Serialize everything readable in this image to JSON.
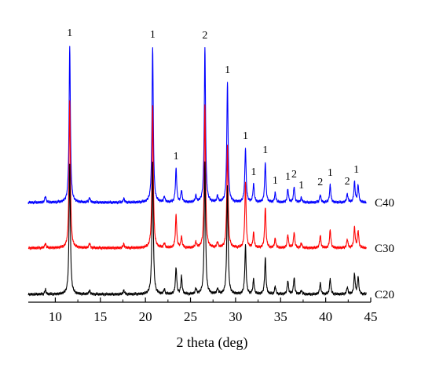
{
  "chart_data": {
    "type": "line",
    "title": "",
    "xlabel": "2 theta (deg)",
    "ylabel": "",
    "xlim": [
      7,
      45
    ],
    "x_ticks": [
      10,
      15,
      20,
      25,
      30,
      35,
      40,
      45
    ],
    "grid": false,
    "legend": "series labels at right end of each trace",
    "series": [
      {
        "name": "C40",
        "color": "#0000ff",
        "peaks": [
          {
            "x": 8.9,
            "h": 8
          },
          {
            "x": 11.6,
            "h": 200
          },
          {
            "x": 13.8,
            "h": 6
          },
          {
            "x": 17.6,
            "h": 5
          },
          {
            "x": 20.8,
            "h": 198
          },
          {
            "x": 22.1,
            "h": 7
          },
          {
            "x": 23.4,
            "h": 43
          },
          {
            "x": 24.0,
            "h": 15
          },
          {
            "x": 25.6,
            "h": 8
          },
          {
            "x": 26.6,
            "h": 197
          },
          {
            "x": 28.0,
            "h": 8
          },
          {
            "x": 29.1,
            "h": 153
          },
          {
            "x": 31.1,
            "h": 69
          },
          {
            "x": 32.0,
            "h": 23
          },
          {
            "x": 33.3,
            "h": 51
          },
          {
            "x": 34.4,
            "h": 12
          },
          {
            "x": 35.8,
            "h": 17
          },
          {
            "x": 36.5,
            "h": 20
          },
          {
            "x": 37.3,
            "h": 6
          },
          {
            "x": 39.4,
            "h": 10
          },
          {
            "x": 40.5,
            "h": 22
          },
          {
            "x": 42.4,
            "h": 11
          },
          {
            "x": 43.2,
            "h": 26
          },
          {
            "x": 43.6,
            "h": 22
          }
        ]
      },
      {
        "name": "C30",
        "color": "#ff0000",
        "peaks": [
          {
            "x": 8.9,
            "h": 6
          },
          {
            "x": 11.6,
            "h": 188
          },
          {
            "x": 13.8,
            "h": 6
          },
          {
            "x": 17.6,
            "h": 5
          },
          {
            "x": 20.8,
            "h": 180
          },
          {
            "x": 22.1,
            "h": 6
          },
          {
            "x": 23.4,
            "h": 42
          },
          {
            "x": 24.0,
            "h": 14
          },
          {
            "x": 25.6,
            "h": 7
          },
          {
            "x": 26.6,
            "h": 182
          },
          {
            "x": 28.0,
            "h": 7
          },
          {
            "x": 29.1,
            "h": 130
          },
          {
            "x": 31.1,
            "h": 84
          },
          {
            "x": 32.0,
            "h": 19
          },
          {
            "x": 33.3,
            "h": 52
          },
          {
            "x": 34.4,
            "h": 12
          },
          {
            "x": 35.8,
            "h": 17
          },
          {
            "x": 36.5,
            "h": 20
          },
          {
            "x": 37.3,
            "h": 6
          },
          {
            "x": 39.4,
            "h": 16
          },
          {
            "x": 40.5,
            "h": 23
          },
          {
            "x": 42.4,
            "h": 11
          },
          {
            "x": 43.2,
            "h": 26
          },
          {
            "x": 43.6,
            "h": 22
          }
        ]
      },
      {
        "name": "C20",
        "color": "#000000",
        "peaks": [
          {
            "x": 8.9,
            "h": 6
          },
          {
            "x": 11.6,
            "h": 165
          },
          {
            "x": 13.8,
            "h": 5
          },
          {
            "x": 17.6,
            "h": 5
          },
          {
            "x": 20.8,
            "h": 168
          },
          {
            "x": 22.1,
            "h": 6
          },
          {
            "x": 23.4,
            "h": 34
          },
          {
            "x": 24.0,
            "h": 22
          },
          {
            "x": 25.6,
            "h": 7
          },
          {
            "x": 26.6,
            "h": 168
          },
          {
            "x": 28.0,
            "h": 7
          },
          {
            "x": 29.1,
            "h": 138
          },
          {
            "x": 31.1,
            "h": 62
          },
          {
            "x": 32.0,
            "h": 19
          },
          {
            "x": 33.3,
            "h": 46
          },
          {
            "x": 34.4,
            "h": 10
          },
          {
            "x": 35.8,
            "h": 17
          },
          {
            "x": 36.5,
            "h": 21
          },
          {
            "x": 37.3,
            "h": 5
          },
          {
            "x": 39.4,
            "h": 14
          },
          {
            "x": 40.5,
            "h": 20
          },
          {
            "x": 42.4,
            "h": 9
          },
          {
            "x": 43.2,
            "h": 26
          },
          {
            "x": 43.6,
            "h": 22
          }
        ]
      }
    ],
    "annotations": [
      {
        "text": "1",
        "x": 11.6
      },
      {
        "text": "1",
        "x": 20.8
      },
      {
        "text": "1",
        "x": 23.4
      },
      {
        "text": "2",
        "x": 26.6
      },
      {
        "text": "1",
        "x": 29.1
      },
      {
        "text": "1",
        "x": 31.1
      },
      {
        "text": "1",
        "x": 32.0
      },
      {
        "text": "1",
        "x": 33.3
      },
      {
        "text": "1",
        "x": 34.4
      },
      {
        "text": "1",
        "x": 35.8
      },
      {
        "text": "2",
        "x": 36.5
      },
      {
        "text": "1",
        "x": 37.3
      },
      {
        "text": "2",
        "x": 39.4
      },
      {
        "text": "1",
        "x": 40.5
      },
      {
        "text": "2",
        "x": 42.4
      },
      {
        "text": "1",
        "x": 43.4
      }
    ]
  }
}
